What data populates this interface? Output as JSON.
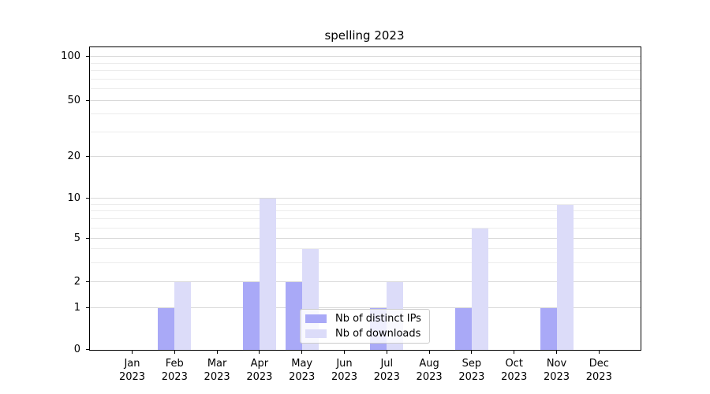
{
  "chart_data": {
    "type": "bar",
    "title": "spelling 2023",
    "categories": [
      "Jan\n2023",
      "Feb\n2023",
      "Mar\n2023",
      "Apr\n2023",
      "May\n2023",
      "Jun\n2023",
      "Jul\n2023",
      "Aug\n2023",
      "Sep\n2023",
      "Oct\n2023",
      "Nov\n2023",
      "Dec\n2023"
    ],
    "series": [
      {
        "key": "distinct-ips",
        "name": "Nb of distinct IPs",
        "color": "#a9a9f7",
        "values": [
          0,
          1,
          0,
          2,
          2,
          0,
          1,
          0,
          1,
          0,
          1,
          0
        ]
      },
      {
        "key": "downloads",
        "name": "Nb of downloads",
        "color": "#dcdcf9",
        "values": [
          0,
          2,
          0,
          10,
          4,
          0,
          2,
          0,
          6,
          0,
          9,
          0
        ]
      }
    ],
    "y_axis": {
      "scale": "symlog",
      "ticks": [
        0,
        1,
        2,
        5,
        10,
        20,
        50,
        100
      ],
      "minor_gridlines": [
        3,
        4,
        6,
        7,
        8,
        9,
        30,
        40,
        60,
        70,
        80,
        90
      ],
      "ylim": [
        0,
        117
      ]
    },
    "x_axis": {
      "label": "",
      "tick_year": "2023"
    },
    "grid": "horizontal",
    "legend": {
      "position": "inside-lower-center",
      "frame": true
    }
  }
}
